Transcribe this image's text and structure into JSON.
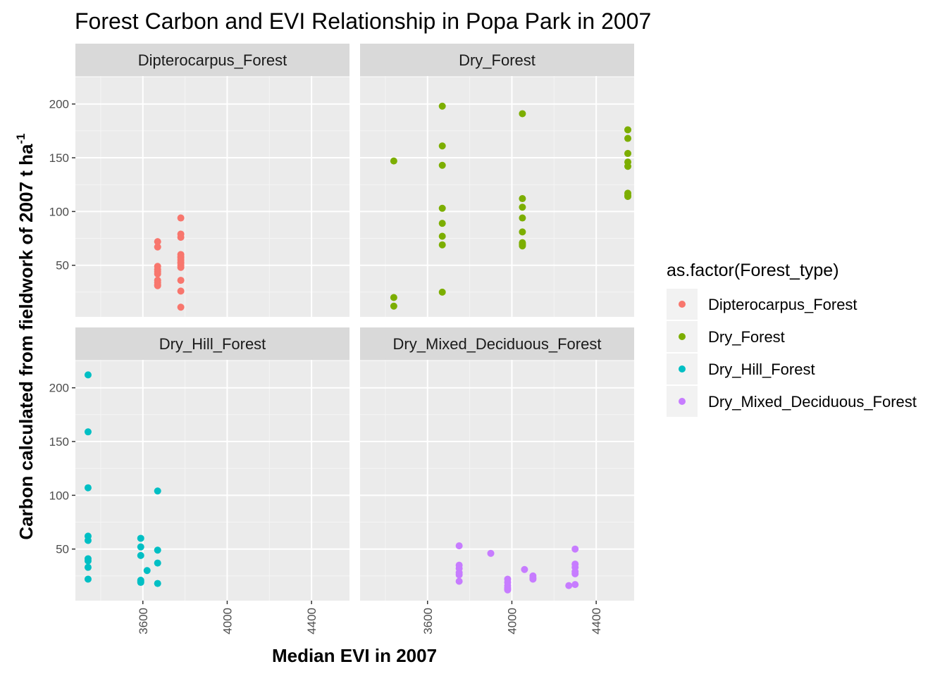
{
  "chart_data": {
    "type": "scatter",
    "title": "Forest Carbon and EVI Relationship in Popa Park in 2007",
    "xlabel": "Median EVI in 2007",
    "ylabel": "Carbon calculated from fieldwork of 2007 t ha",
    "ylabel_superscript": "-1",
    "xlim": [
      3280,
      4580
    ],
    "ylim": [
      2,
      226
    ],
    "x_ticks": [
      3600,
      4000,
      4400
    ],
    "y_ticks": [
      50,
      100,
      150,
      200
    ],
    "grid": true,
    "facets": [
      "Dipterocarpus_Forest",
      "Dry_Forest",
      "Dry_Hill_Forest",
      "Dry_Mixed_Deciduous_Forest"
    ],
    "legend": {
      "title": "as.factor(Forest_type)",
      "position": "right",
      "entries": [
        "Dipterocarpus_Forest",
        "Dry_Forest",
        "Dry_Hill_Forest",
        "Dry_Mixed_Deciduous_Forest"
      ]
    },
    "colors": {
      "Dipterocarpus_Forest": "#F8766D",
      "Dry_Forest": "#7CAE00",
      "Dry_Hill_Forest": "#00BFC4",
      "Dry_Mixed_Deciduous_Forest": "#C77CFF"
    },
    "series": [
      {
        "name": "Dipterocarpus_Forest",
        "x": [
          3670,
          3670,
          3670,
          3670,
          3670,
          3670,
          3670,
          3670,
          3670,
          3670,
          3780,
          3780,
          3780,
          3780,
          3780,
          3780,
          3780,
          3780,
          3780,
          3780,
          3780,
          3780,
          3780,
          3780
        ],
        "y": [
          72,
          67,
          49,
          46,
          44,
          42,
          36,
          34,
          32,
          31,
          94,
          79,
          76,
          60,
          58,
          55,
          53,
          52,
          50,
          48,
          36,
          26,
          11,
          57
        ]
      },
      {
        "name": "Dry_Forest",
        "x": [
          3440,
          3440,
          3440,
          3670,
          3670,
          3670,
          3670,
          3670,
          3670,
          3670,
          3670,
          4050,
          4050,
          4050,
          4050,
          4050,
          4050,
          4050,
          4050,
          4050,
          4550,
          4550,
          4550,
          4550,
          4550,
          4550,
          4550,
          4550
        ],
        "y": [
          147,
          20,
          12,
          198,
          161,
          143,
          103,
          89,
          77,
          69,
          25,
          191,
          112,
          104,
          94,
          81,
          70,
          68,
          71,
          69,
          176,
          168,
          154,
          146,
          142,
          117,
          115,
          114
        ]
      },
      {
        "name": "Dry_Hill_Forest",
        "x": [
          3340,
          3340,
          3340,
          3340,
          3340,
          3340,
          3340,
          3340,
          3340,
          3590,
          3590,
          3590,
          3590,
          3590,
          3590,
          3620,
          3670,
          3670,
          3670,
          3670
        ],
        "y": [
          212,
          159,
          107,
          62,
          58,
          41,
          39,
          33,
          22,
          60,
          52,
          44,
          21,
          19,
          20,
          30,
          104,
          49,
          37,
          18
        ]
      },
      {
        "name": "Dry_Mixed_Deciduous_Forest",
        "x": [
          3750,
          3750,
          3750,
          3750,
          3750,
          3750,
          3900,
          3980,
          3980,
          3980,
          3980,
          3980,
          3980,
          4060,
          4100,
          4100,
          4100,
          4270,
          4300,
          4300,
          4300,
          4300,
          4300,
          4300
        ],
        "y": [
          53,
          35,
          32,
          28,
          26,
          20,
          46,
          22,
          19,
          16,
          14,
          13,
          12,
          31,
          25,
          23,
          22,
          16,
          50,
          36,
          33,
          29,
          27,
          17
        ]
      }
    ]
  }
}
